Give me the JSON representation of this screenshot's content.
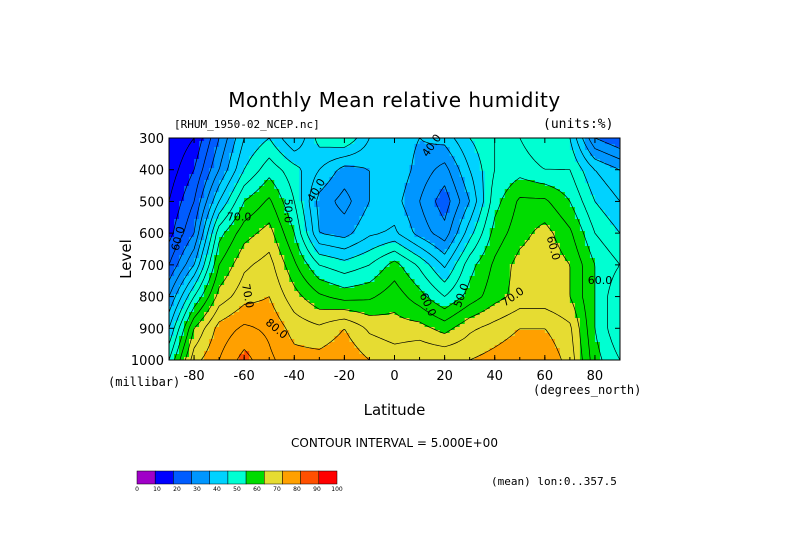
{
  "page": {
    "title": "Monthly Mean relative humidity",
    "file_label": "[RHUM_1950-02_NCEP.nc]",
    "units_label": "(units:%)",
    "y_unit": "(millibar)",
    "x_unit": "(degrees_north)",
    "xlabel": "Latitude",
    "ylabel": "Level",
    "contour_note": "CONTOUR INTERVAL = 5.000E+00",
    "mean_note": "(mean) lon:0..357.5"
  },
  "chart_data": {
    "type": "heatmap",
    "title": "Monthly Mean relative humidity",
    "xlabel": "Latitude",
    "ylabel": "Level",
    "x_unit": "degrees_north",
    "y_unit": "millibar",
    "value_unit": "%",
    "xlim": [
      -90,
      90
    ],
    "ylim": [
      1000,
      300
    ],
    "x_ticks": [
      -80,
      -60,
      -40,
      -20,
      0,
      20,
      40,
      60,
      80
    ],
    "x_tick_labels": [
      "-80",
      "-60",
      "-40",
      "-20",
      "0",
      "20",
      "40",
      "60",
      "80"
    ],
    "y_ticks": [
      300,
      400,
      500,
      600,
      700,
      800,
      900,
      1000
    ],
    "y_tick_labels": [
      "300",
      "400",
      "500",
      "600",
      "700",
      "800",
      "900",
      "1000"
    ],
    "contour_interval": 5,
    "levels": [
      0,
      10,
      20,
      30,
      40,
      50,
      60,
      70,
      80,
      90,
      100
    ],
    "colorbar_tick_labels": [
      "0",
      "10",
      "20",
      "30",
      "40",
      "50",
      "60",
      "70",
      "80",
      "90",
      "100"
    ],
    "colors": [
      "#a000c8",
      "#0000ff",
      "#005cff",
      "#0096ff",
      "#00d2ff",
      "#00ffd2",
      "#00dc00",
      "#e6dc32",
      "#ffa000",
      "#ff5000",
      "#ff0000"
    ],
    "grid": false,
    "latitudes": [
      -90,
      -80,
      -70,
      -60,
      -50,
      -40,
      -30,
      -20,
      -10,
      0,
      10,
      20,
      30,
      40,
      50,
      60,
      70,
      80,
      90
    ],
    "pressure_levels": [
      300,
      400,
      500,
      600,
      700,
      800,
      900,
      1000
    ],
    "values": [
      [
        10,
        15,
        30,
        45,
        50,
        40,
        52,
        55,
        45,
        43,
        40,
        42,
        50,
        55,
        55,
        50,
        50,
        30,
        25
      ],
      [
        12,
        20,
        35,
        50,
        58,
        52,
        45,
        38,
        40,
        44,
        38,
        33,
        45,
        55,
        58,
        55,
        55,
        45,
        40
      ],
      [
        15,
        25,
        45,
        60,
        66,
        55,
        38,
        33,
        40,
        42,
        35,
        27,
        40,
        58,
        66,
        66,
        60,
        50,
        45
      ],
      [
        18,
        30,
        58,
        68,
        72,
        60,
        40,
        38,
        44,
        46,
        38,
        32,
        48,
        62,
        68,
        72,
        66,
        55,
        50
      ],
      [
        25,
        40,
        65,
        74,
        77,
        66,
        55,
        52,
        55,
        62,
        54,
        44,
        58,
        66,
        72,
        74,
        70,
        60,
        55
      ],
      [
        35,
        55,
        72,
        78,
        80,
        72,
        66,
        63,
        64,
        68,
        62,
        55,
        62,
        68,
        72,
        72,
        70,
        60,
        50
      ],
      [
        45,
        70,
        82,
        86,
        84,
        78,
        76,
        80,
        74,
        72,
        72,
        68,
        74,
        77,
        80,
        80,
        76,
        60,
        50
      ],
      [
        55,
        78,
        85,
        92,
        86,
        82,
        82,
        84,
        80,
        78,
        80,
        80,
        80,
        82,
        84,
        84,
        78,
        62,
        55
      ]
    ],
    "contour_labels": [
      "40.0",
      "40.0",
      "50.0",
      "60.0",
      "60.0",
      "70.0",
      "70.0",
      "80.0",
      "60.0",
      "50.0",
      "70.0",
      "60.0"
    ]
  }
}
